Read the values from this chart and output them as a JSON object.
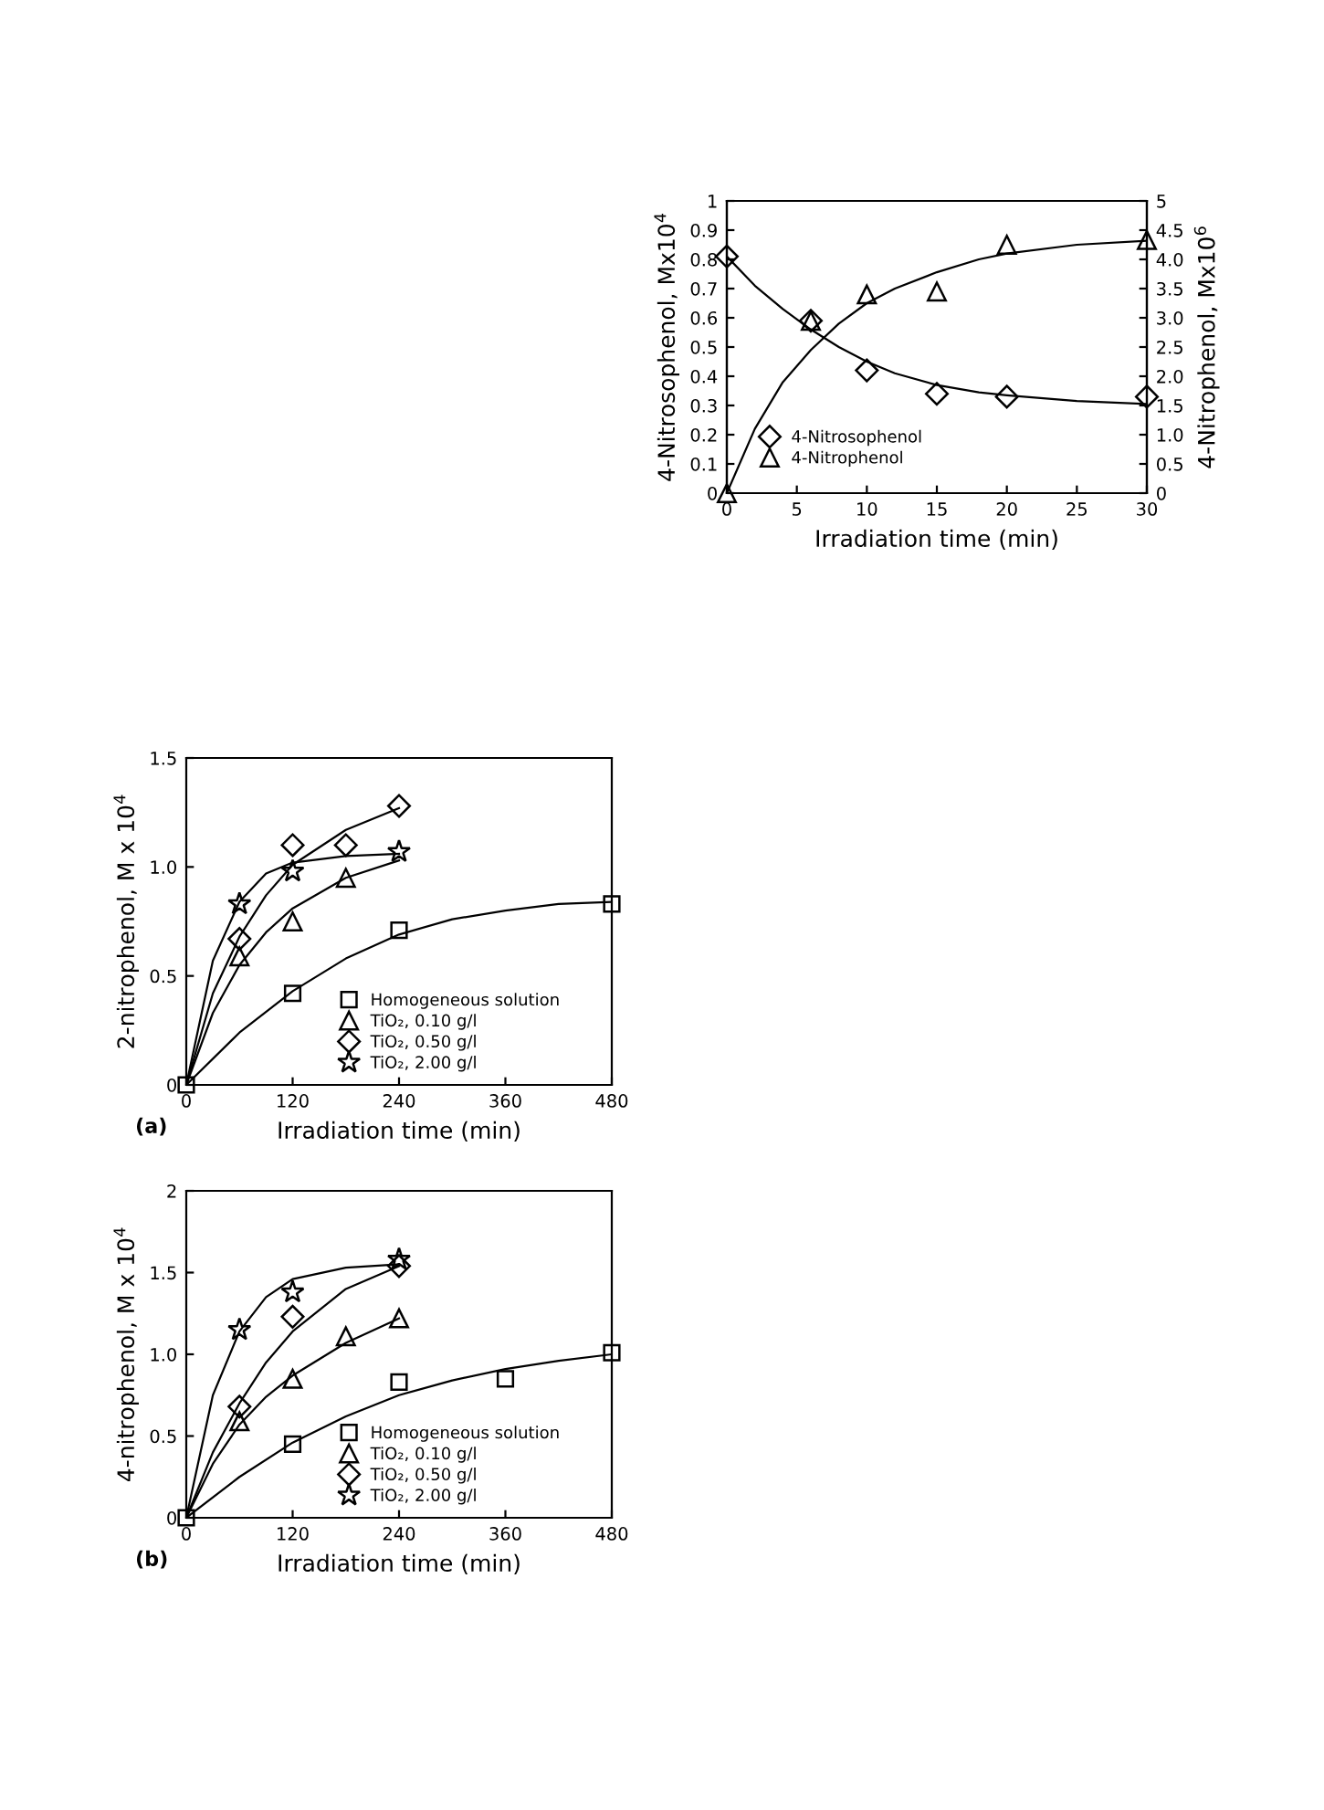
{
  "chart_data": [
    {
      "type": "scatter",
      "xlabel": "Irradiation time (min)",
      "ylabel": "4-Nitrosophenol, Mx10$^{4}$",
      "y2label": "4-Nitrophenol, Mx10$^{6}$",
      "xlim": [
        0,
        30
      ],
      "xticks": [
        0,
        5,
        10,
        15,
        20,
        25,
        30
      ],
      "ylim": [
        0,
        1
      ],
      "yticks": [
        0,
        0.1,
        0.2,
        0.3,
        0.4,
        0.5,
        0.6,
        0.7,
        0.8,
        0.9,
        1
      ],
      "y2lim": [
        0,
        5
      ],
      "y2ticks": [
        0,
        0.5,
        {
          "value": 1,
          "label": "1.0"
        },
        1.5,
        {
          "value": 2,
          "label": "2.0"
        },
        2.5,
        {
          "value": 3,
          "label": "3.0"
        },
        3.5,
        {
          "value": 4,
          "label": "4.0"
        },
        4.5,
        5
      ],
      "legend": "bottom left",
      "series": [
        {
          "name": "4-Nitrosophenol",
          "marker": "diamond",
          "color": "#000000",
          "x": [
            0,
            6,
            10,
            15,
            20,
            30
          ],
          "values": [
            0.81,
            0.59,
            0.42,
            0.34,
            0.33,
            0.33
          ]
        },
        {
          "name": "4-Nitrophenol",
          "marker": "triangle",
          "axis": "y2",
          "color": "#000000",
          "x": [
            0,
            6,
            10,
            15,
            20,
            30
          ],
          "values": [
            0,
            2.95,
            3.4,
            3.45,
            4.25,
            4.33
          ]
        },
        {
          "type": "line",
          "color": "#000000",
          "x": [
            0,
            2,
            4,
            6,
            8,
            10,
            12,
            15,
            18,
            20,
            25,
            30
          ],
          "values": [
            0.81,
            0.71,
            0.63,
            0.56,
            0.5,
            0.45,
            0.41,
            0.37,
            0.345,
            0.335,
            0.315,
            0.305
          ]
        },
        {
          "type": "line",
          "axis": "y2",
          "color": "#000000",
          "x": [
            0,
            2,
            4,
            6,
            8,
            10,
            12,
            15,
            18,
            20,
            25,
            30
          ],
          "values": [
            0,
            1.1,
            1.9,
            2.45,
            2.9,
            3.25,
            3.5,
            3.78,
            4.0,
            4.1,
            4.25,
            4.32
          ]
        }
      ]
    },
    {
      "type": "scatter",
      "xlabel": "Irradiation time (min)",
      "ylabel": "2-nitrophenol, M x 10$^{4}$",
      "annotations": [
        "(a)"
      ],
      "xlim": [
        0,
        480
      ],
      "xticks": [
        0,
        120,
        240,
        360,
        480
      ],
      "ylim": [
        0,
        1.5
      ],
      "yticks": [
        0,
        0.5,
        {
          "value": 1,
          "label": "1.0"
        },
        1.5
      ],
      "legend": "bottom right",
      "series": [
        {
          "name": "Homogeneous solution",
          "marker": "square",
          "color": "#000000",
          "x": [
            0,
            120,
            240,
            480
          ],
          "values": [
            0,
            0.42,
            0.71,
            0.83
          ]
        },
        {
          "name": "TiO₂, 0.10 g/l",
          "marker": "triangle",
          "color": "#000000",
          "x": [
            60,
            120,
            180
          ],
          "values": [
            0.59,
            0.75,
            0.95
          ]
        },
        {
          "name": "TiO₂, 0.50 g/l",
          "marker": "diamond",
          "color": "#000000",
          "x": [
            60,
            120,
            180,
            240
          ],
          "values": [
            0.67,
            1.1,
            1.1,
            1.28
          ]
        },
        {
          "name": "TiO₂, 2.00 g/l",
          "marker": "star",
          "color": "#000000",
          "x": [
            60,
            120,
            240
          ],
          "values": [
            0.83,
            0.98,
            1.07
          ]
        },
        {
          "type": "line",
          "color": "#000000",
          "x": [
            0,
            60,
            120,
            180,
            240,
            300,
            360,
            420,
            480
          ],
          "values": [
            0,
            0.24,
            0.43,
            0.58,
            0.69,
            0.76,
            0.8,
            0.83,
            0.84
          ]
        },
        {
          "type": "line",
          "color": "#000000",
          "x": [
            0,
            30,
            60,
            90,
            120,
            180,
            240
          ],
          "values": [
            0,
            0.33,
            0.55,
            0.7,
            0.81,
            0.95,
            1.03
          ]
        },
        {
          "type": "line",
          "color": "#000000",
          "x": [
            0,
            30,
            60,
            90,
            120,
            180,
            240
          ],
          "values": [
            0,
            0.42,
            0.68,
            0.87,
            1.01,
            1.17,
            1.27
          ]
        },
        {
          "type": "line",
          "color": "#000000",
          "x": [
            0,
            30,
            60,
            90,
            120,
            180,
            240
          ],
          "values": [
            0,
            0.57,
            0.84,
            0.97,
            1.02,
            1.05,
            1.06
          ]
        }
      ]
    },
    {
      "type": "scatter",
      "xlabel": "Irradiation time (min)",
      "ylabel": "4-nitrophenol, M x 10$^{4}$",
      "annotations": [
        "(b)"
      ],
      "xlim": [
        0,
        480
      ],
      "xticks": [
        0,
        120,
        240,
        360,
        480
      ],
      "ylim": [
        0,
        2
      ],
      "yticks": [
        0,
        0.5,
        {
          "value": 1,
          "label": "1.0"
        },
        1.5,
        2
      ],
      "legend": "bottom right",
      "series": [
        {
          "name": "Homogeneous solution",
          "marker": "square",
          "color": "#000000",
          "x": [
            0,
            120,
            240,
            360,
            480
          ],
          "values": [
            0,
            0.45,
            0.83,
            0.85,
            1.01
          ]
        },
        {
          "name": "TiO₂, 0.10 g/l",
          "marker": "triangle",
          "color": "#000000",
          "x": [
            60,
            120,
            180,
            240
          ],
          "values": [
            0.59,
            0.85,
            1.11,
            1.22
          ]
        },
        {
          "name": "TiO₂, 0.50 g/l",
          "marker": "diamond",
          "color": "#000000",
          "x": [
            60,
            120,
            240
          ],
          "values": [
            0.68,
            1.23,
            1.54
          ]
        },
        {
          "name": "TiO₂, 2.00 g/l",
          "marker": "star",
          "color": "#000000",
          "x": [
            60,
            120,
            240
          ],
          "values": [
            1.15,
            1.38,
            1.58
          ]
        },
        {
          "type": "line",
          "color": "#000000",
          "x": [
            0,
            60,
            120,
            180,
            240,
            300,
            360,
            420,
            480
          ],
          "values": [
            0,
            0.25,
            0.46,
            0.62,
            0.75,
            0.84,
            0.91,
            0.96,
            1.0
          ]
        },
        {
          "type": "line",
          "color": "#000000",
          "x": [
            0,
            30,
            60,
            90,
            120,
            180,
            240
          ],
          "values": [
            0,
            0.33,
            0.57,
            0.74,
            0.87,
            1.07,
            1.22
          ]
        },
        {
          "type": "line",
          "color": "#000000",
          "x": [
            0,
            30,
            60,
            90,
            120,
            180,
            240
          ],
          "values": [
            0,
            0.4,
            0.7,
            0.95,
            1.14,
            1.4,
            1.54
          ]
        },
        {
          "type": "line",
          "color": "#000000",
          "x": [
            0,
            30,
            60,
            90,
            120,
            180,
            240
          ],
          "values": [
            0,
            0.75,
            1.14,
            1.35,
            1.46,
            1.53,
            1.55
          ]
        }
      ]
    }
  ]
}
